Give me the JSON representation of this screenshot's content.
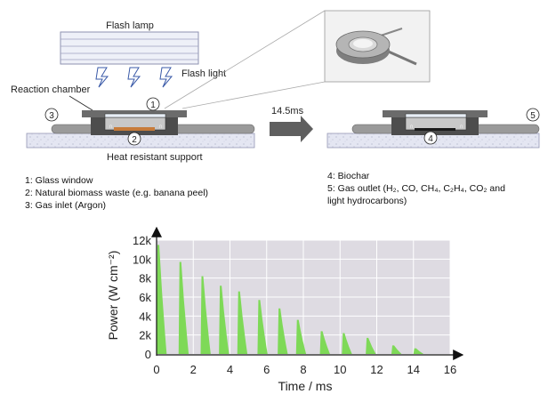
{
  "diagram": {
    "flash_lamp_label": "Flash lamp",
    "flash_light_label": "Flash light",
    "reaction_chamber_label": "Reaction chamber",
    "heat_support_label": "Heat resistant support",
    "time_arrow_label": "14.5ms",
    "markers": [
      "1",
      "2",
      "3",
      "4",
      "5"
    ]
  },
  "legend_left": [
    "1: Glass window",
    "2: Natural biomass waste (e.g. banana peel)",
    "3: Gas inlet (Argon)"
  ],
  "legend_right": {
    "line1": "4: Biochar",
    "line2_prefix": "5: Gas outlet (",
    "line2_gases": "H₂, CO, CH₄, C₂H₄, CO₂",
    "line2_suffix": " and",
    "line3": "light hydrocarbons)"
  },
  "colors": {
    "pulse_fill": "#7ed957",
    "plot_bg": "#dedbe2",
    "support_fill": "#e4e6f2",
    "chamber_dark": "#4d4d4d",
    "biomass": "#c77b3a"
  },
  "chart_data": {
    "type": "area",
    "xlabel": "Time / ms",
    "ylabel": "Power (W cm⁻²)",
    "xlim": [
      0,
      16
    ],
    "ylim": [
      0,
      12000
    ],
    "xticks": [
      "0",
      "2",
      "4",
      "6",
      "8",
      "10",
      "12",
      "14",
      "16"
    ],
    "yticks": [
      "0",
      "2k",
      "4k",
      "6k",
      "8k",
      "10k",
      "12k"
    ],
    "grid": true,
    "series": [
      {
        "pulses": [
          {
            "t": 0.0,
            "peak": 11500
          },
          {
            "t": 1.2,
            "peak": 9700
          },
          {
            "t": 2.4,
            "peak": 8200
          },
          {
            "t": 3.4,
            "peak": 7200
          },
          {
            "t": 4.4,
            "peak": 6600
          },
          {
            "t": 5.5,
            "peak": 5700
          },
          {
            "t": 6.6,
            "peak": 4800
          },
          {
            "t": 7.6,
            "peak": 3600
          },
          {
            "t": 8.9,
            "peak": 2400
          },
          {
            "t": 10.1,
            "peak": 2200
          },
          {
            "t": 11.4,
            "peak": 1700
          },
          {
            "t": 12.8,
            "peak": 900
          },
          {
            "t": 14.0,
            "peak": 600
          }
        ]
      }
    ]
  }
}
